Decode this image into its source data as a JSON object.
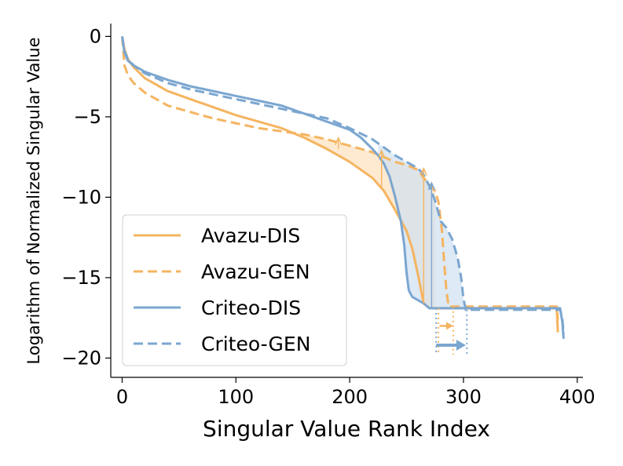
{
  "colors": {
    "avazu": "#f5b461",
    "criteo": "#7ba6d0",
    "fill_avazu": "#fde3c2",
    "fill_criteo": "#cfe0ef",
    "fill_overlap": "#d9d6cc"
  },
  "chart_data": {
    "type": "line",
    "title": "",
    "xlabel": "Singular Value Rank Index",
    "ylabel": "Logarithm of Normalized Singular Value",
    "xlim": [
      -10,
      405
    ],
    "ylim": [
      -21.2,
      0.8
    ],
    "xticks": [
      0,
      100,
      200,
      300,
      400
    ],
    "yticks": [
      0,
      -5,
      -10,
      -15,
      -20
    ],
    "xtick_labels": [
      "0",
      "100",
      "200",
      "300",
      "400"
    ],
    "ytick_labels": [
      "0",
      "−5",
      "−10",
      "−15",
      "−20"
    ],
    "legend_position": "lower-left",
    "series": [
      {
        "name": "Avazu-DIS",
        "dataset": "avazu",
        "style": "solid",
        "x": [
          0,
          2,
          5,
          10,
          20,
          40,
          60,
          80,
          100,
          120,
          140,
          160,
          180,
          200,
          220,
          230,
          240,
          250,
          255,
          260,
          265,
          270,
          275,
          280,
          290,
          300,
          350,
          382,
          383
        ],
        "y": [
          0,
          -0.8,
          -1.4,
          -1.9,
          -2.6,
          -3.4,
          -3.9,
          -4.4,
          -4.9,
          -5.3,
          -5.7,
          -6.3,
          -7.0,
          -7.8,
          -8.8,
          -9.6,
          -10.8,
          -12.1,
          -13.2,
          -14.8,
          -16.6,
          -16.9,
          -16.9,
          -16.9,
          -16.9,
          -16.9,
          -16.9,
          -16.9,
          -18.4
        ]
      },
      {
        "name": "Avazu-GEN",
        "dataset": "avazu",
        "style": "dashed",
        "x": [
          0,
          2,
          5,
          10,
          20,
          40,
          60,
          80,
          100,
          120,
          140,
          160,
          180,
          200,
          220,
          230,
          240,
          250,
          260,
          265,
          270,
          275,
          278,
          281,
          283,
          285,
          287,
          290,
          295,
          300,
          350,
          382,
          383
        ],
        "y": [
          0,
          -1.8,
          -2.4,
          -2.9,
          -3.5,
          -4.3,
          -4.7,
          -5.1,
          -5.4,
          -5.7,
          -5.9,
          -6.1,
          -6.4,
          -6.8,
          -7.2,
          -7.5,
          -7.8,
          -8.0,
          -8.3,
          -8.8,
          -9.2,
          -9.6,
          -10.3,
          -12.0,
          -14.0,
          -15.8,
          -16.8,
          -16.8,
          -16.8,
          -16.8,
          -16.8,
          -16.8,
          -17.6
        ]
      },
      {
        "name": "Criteo-DIS",
        "dataset": "criteo",
        "style": "solid",
        "x": [
          0,
          2,
          5,
          10,
          20,
          40,
          60,
          80,
          100,
          120,
          140,
          160,
          180,
          200,
          210,
          220,
          225,
          230,
          235,
          240,
          245,
          248,
          250,
          252,
          255,
          260,
          265,
          270,
          275,
          285,
          300,
          350,
          385,
          387,
          388
        ],
        "y": [
          0,
          -1.0,
          -1.5,
          -1.8,
          -2.2,
          -2.7,
          -3.1,
          -3.4,
          -3.7,
          -4.0,
          -4.3,
          -4.8,
          -5.3,
          -5.8,
          -6.3,
          -7.0,
          -7.4,
          -7.9,
          -8.7,
          -10.0,
          -11.5,
          -13.0,
          -14.7,
          -15.8,
          -16.2,
          -16.4,
          -16.6,
          -16.9,
          -16.9,
          -16.9,
          -16.9,
          -16.9,
          -16.9,
          -17.8,
          -18.8
        ]
      },
      {
        "name": "Criteo-GEN",
        "dataset": "criteo",
        "style": "dashed",
        "x": [
          0,
          2,
          5,
          10,
          20,
          40,
          60,
          80,
          100,
          120,
          140,
          160,
          180,
          200,
          220,
          230,
          240,
          250,
          260,
          265,
          270,
          275,
          280,
          285,
          290,
          295,
          298,
          300,
          302,
          305,
          350,
          385,
          387,
          388
        ],
        "y": [
          0,
          -0.9,
          -1.4,
          -1.8,
          -2.3,
          -2.9,
          -3.3,
          -3.6,
          -3.9,
          -4.2,
          -4.5,
          -4.8,
          -5.1,
          -5.7,
          -6.4,
          -6.9,
          -7.4,
          -7.8,
          -8.2,
          -8.6,
          -9.3,
          -10.2,
          -11.5,
          -11.9,
          -12.6,
          -13.8,
          -15.0,
          -16.3,
          -17.0,
          -17.0,
          -17.0,
          -17.0,
          -17.6,
          -18.5
        ]
      }
    ],
    "shaded_regions": [
      {
        "between": [
          "Avazu-DIS",
          "Avazu-GEN"
        ],
        "x_range": [
          150,
          275
        ],
        "dataset": "avazu"
      },
      {
        "between": [
          "Criteo-DIS",
          "Criteo-GEN"
        ],
        "x_range": [
          225,
          300
        ],
        "dataset": "criteo"
      }
    ],
    "vertical_arrows": [
      {
        "x": 190,
        "from": -7.0,
        "to": -6.3,
        "dataset": "avazu"
      },
      {
        "x": 228,
        "from": -9.4,
        "to": -7.1,
        "dataset": "avazu"
      },
      {
        "x": 265,
        "from": -16.6,
        "to": -8.2,
        "dataset": "avazu"
      },
      {
        "x": 272,
        "from": -16.9,
        "to": -9.1,
        "dataset": "criteo"
      }
    ],
    "horizontal_arrows": [
      {
        "y": -18.0,
        "from": 279,
        "to": 291,
        "dataset": "avazu"
      },
      {
        "y": -19.2,
        "from": 276,
        "to": 302,
        "dataset": "criteo"
      }
    ],
    "dotted_guides": [
      {
        "x": 278,
        "y_range": [
          -16.9,
          -19.8
        ],
        "dataset": "avazu"
      },
      {
        "x": 291,
        "y_range": [
          -16.8,
          -19.8
        ],
        "dataset": "avazu"
      },
      {
        "x": 276,
        "y_range": [
          -16.9,
          -19.8
        ],
        "dataset": "criteo"
      },
      {
        "x": 303,
        "y_range": [
          -17.0,
          -19.8
        ],
        "dataset": "criteo"
      }
    ]
  }
}
